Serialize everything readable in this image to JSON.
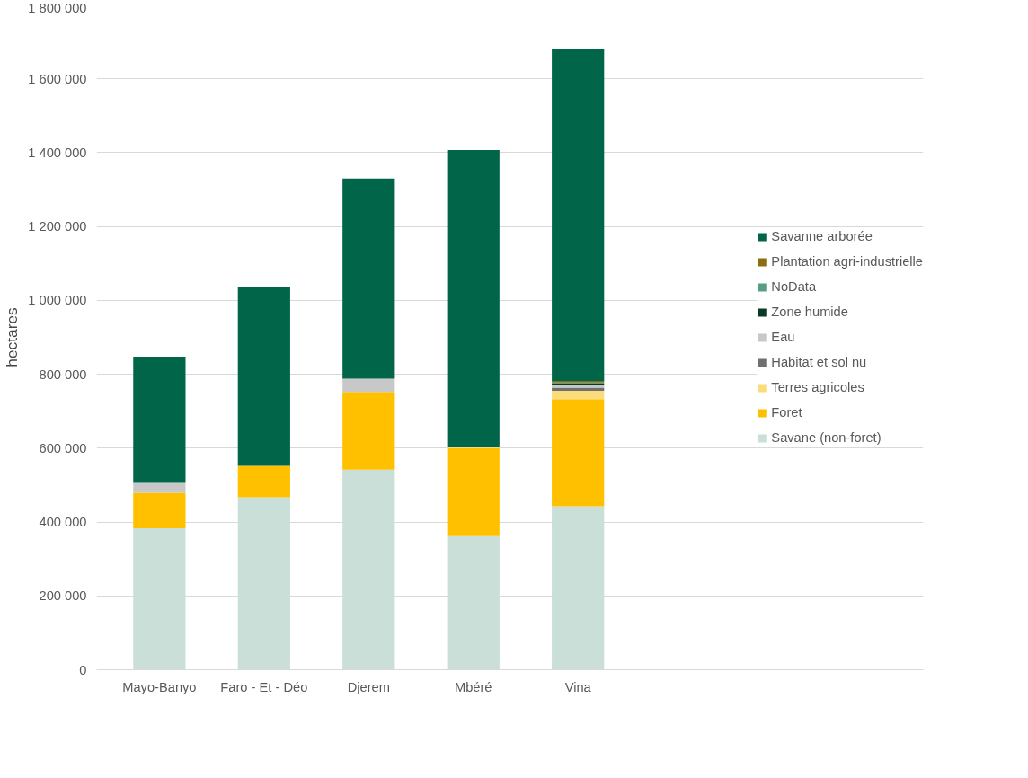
{
  "chart_data": {
    "type": "bar",
    "stacked": true,
    "ylabel": "hectares",
    "categories": [
      "Mayo-Banyo",
      "Faro - Et - Déo",
      "Djerem",
      "Mbéré",
      "Vina"
    ],
    "series": [
      {
        "name": "Savane (non-foret)",
        "color": "#c9dfd8",
        "values": [
          383000,
          467000,
          542000,
          362000,
          443000
        ]
      },
      {
        "name": "Foret",
        "color": "#ffc000",
        "values": [
          96000,
          85000,
          210000,
          238000,
          290000
        ]
      },
      {
        "name": "Terres agricoles",
        "color": "#fbdc7a",
        "values": [
          0,
          0,
          0,
          2000,
          22000
        ]
      },
      {
        "name": "Habitat et sol nu",
        "color": "#707070",
        "values": [
          0,
          0,
          0,
          0,
          9000
        ]
      },
      {
        "name": "Eau",
        "color": "#c8c8c8",
        "values": [
          27000,
          0,
          36000,
          0,
          6000
        ]
      },
      {
        "name": "Zone humide",
        "color": "#0a3a26",
        "values": [
          0,
          0,
          0,
          0,
          5000
        ]
      },
      {
        "name": "NoData",
        "color": "#5a9e82",
        "values": [
          0,
          0,
          0,
          0,
          3000
        ]
      },
      {
        "name": "Plantation agri-industrielle",
        "color": "#8b6d12",
        "values": [
          0,
          0,
          0,
          0,
          4000
        ]
      },
      {
        "name": "Savanne arborée",
        "color": "#01654a",
        "values": [
          342000,
          484000,
          542000,
          805000,
          898000
        ]
      }
    ],
    "ylim": [
      0,
      1800000
    ],
    "yticks": [
      {
        "value": 0,
        "label": "0"
      },
      {
        "value": 200000,
        "label": "200 000"
      },
      {
        "value": 400000,
        "label": "400 000"
      },
      {
        "value": 600000,
        "label": "600 000"
      },
      {
        "value": 800000,
        "label": "800 000"
      },
      {
        "value": 1000000,
        "label": "1 000 000"
      },
      {
        "value": 1200000,
        "label": "1 200 000"
      },
      {
        "value": 1400000,
        "label": "1 400 000"
      },
      {
        "value": 1600000,
        "label": "1 600 000"
      },
      {
        "value": 1800000,
        "label": "1 800 000"
      }
    ],
    "grid": "y",
    "legend": "right"
  }
}
